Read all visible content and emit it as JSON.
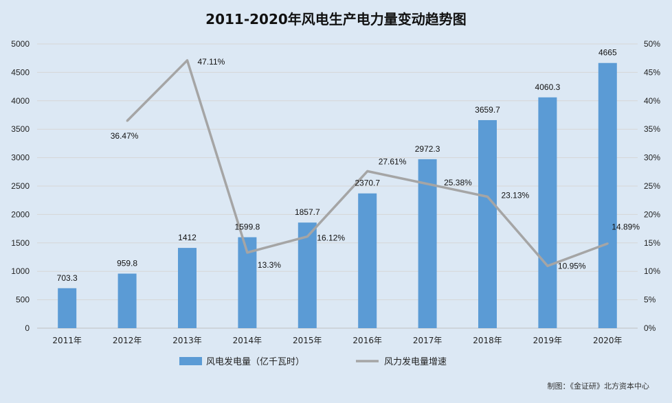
{
  "chart_data": {
    "type": "bar",
    "title": "2011-2020年风电生产电力量变动趋势图",
    "categories": [
      "2011年",
      "2012年",
      "2013年",
      "2014年",
      "2015年",
      "2016年",
      "2017年",
      "2018年",
      "2019年",
      "2020年"
    ],
    "series": [
      {
        "name": "风电发电量（亿千瓦时）",
        "type": "bar",
        "axis": "left",
        "color": "#5b9bd5",
        "values": [
          703.3,
          959.8,
          1412,
          1599.8,
          1857.7,
          2370.7,
          2972.3,
          3659.7,
          4060.3,
          4665
        ],
        "labels": [
          "703.3",
          "959.8",
          "1412",
          "1599.8",
          "1857.7",
          "2370.7",
          "2972.3",
          "3659.7",
          "4060.3",
          "4665"
        ]
      },
      {
        "name": "风力发电量增速",
        "type": "line",
        "axis": "right",
        "color": "#a5a5a5",
        "values": [
          null,
          36.47,
          47.11,
          13.3,
          16.12,
          27.61,
          25.38,
          23.13,
          10.95,
          14.89
        ],
        "labels": [
          "",
          "36.47%",
          "47.11%",
          "13.3%",
          "16.12%",
          "27.61%",
          "25.38%",
          "23.13%",
          "10.95%",
          "14.89%"
        ]
      }
    ],
    "y_left": {
      "min": 0,
      "max": 5000,
      "ticks": [
        "0",
        "500",
        "1000",
        "1500",
        "2000",
        "2500",
        "3000",
        "3500",
        "4000",
        "4500",
        "5000"
      ]
    },
    "y_right": {
      "min": 0,
      "max": 50,
      "ticks": [
        "0%",
        "5%",
        "10%",
        "15%",
        "20%",
        "25%",
        "30%",
        "35%",
        "40%",
        "45%",
        "50%"
      ]
    },
    "grid": true,
    "legend": "bottom-center",
    "source": "制图：《金证研》北方资本中心"
  }
}
